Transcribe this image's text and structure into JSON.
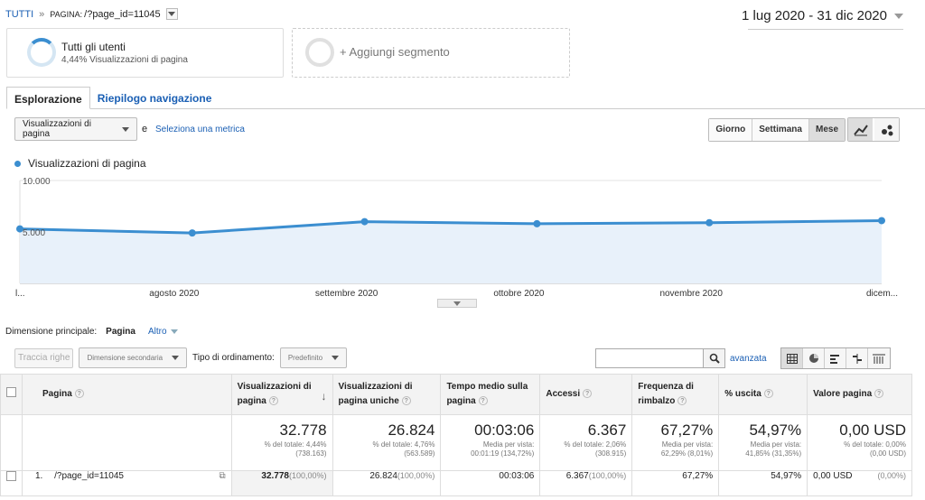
{
  "breadcrumb": {
    "root": "TUTTI",
    "separator": "»",
    "label": "PAGINA:",
    "value": "/?page_id=11045"
  },
  "date_range": "1 lug 2020 - 31 dic 2020",
  "segments": [
    {
      "title": "Tutti gli utenti",
      "subtitle": "4,44% Visualizzazioni di pagina"
    },
    {
      "title": "+ Aggiungi segmento"
    }
  ],
  "tabs": [
    "Esplorazione",
    "Riepilogo navigazione"
  ],
  "metric": {
    "selected": "Visualizzazioni di pagina",
    "conj": "e",
    "link": "Seleziona una metrica"
  },
  "granularity": [
    "Giorno",
    "Settimana",
    "Mese"
  ],
  "legend": "Visualizzazioni di pagina",
  "chart_data": {
    "type": "area",
    "series": [
      {
        "name": "Visualizzazioni di pagina",
        "values": [
          5300,
          4900,
          6000,
          5800,
          5900,
          6100
        ]
      }
    ],
    "x_labels": [
      "l...",
      "agosto 2020",
      "settembre 2020",
      "ottobre 2020",
      "novembre 2020",
      "dicem..."
    ],
    "y_ticks": [
      "10.000",
      "5.000"
    ],
    "ylim": [
      0,
      10000
    ],
    "color": "#3b8ed0"
  },
  "dimension": {
    "label": "Dimensione principale:",
    "value": "Pagina",
    "other": "Altro"
  },
  "toolbar": {
    "plot_rows": "Traccia righe",
    "secondary": "Dimensione secondaria",
    "sort_label": "Tipo di ordinamento:",
    "sort_value": "Predefinito",
    "advanced": "avanzata"
  },
  "table": {
    "headers": [
      "Pagina",
      "Visualizzazioni di pagina",
      "Visualizzazioni di pagina uniche",
      "Tempo medio sulla pagina",
      "Accessi",
      "Frequenza di rimbalzo",
      "% uscita",
      "Valore pagina"
    ],
    "totals": [
      {
        "big": "32.778",
        "l1": "% del totale: 4,44%",
        "l2": "(738.163)"
      },
      {
        "big": "26.824",
        "l1": "% del totale: 4,76%",
        "l2": "(563.589)"
      },
      {
        "big": "00:03:06",
        "l1": "Media per vista:",
        "l2": "00:01:19 (134,72%)"
      },
      {
        "big": "6.367",
        "l1": "% del totale: 2,06%",
        "l2": "(308.915)"
      },
      {
        "big": "67,27%",
        "l1": "Media per vista:",
        "l2": "62,29% (8,01%)"
      },
      {
        "big": "54,97%",
        "l1": "Media per vista:",
        "l2": "41,85% (31,35%)"
      },
      {
        "big": "0,00 USD",
        "l1": "% del totale: 0,00%",
        "l2": "(0,00 USD)"
      }
    ],
    "row": {
      "index": "1.",
      "page": "/?page_id=11045",
      "pageviews": "32.778",
      "pageviews_pct": "(100,00%)",
      "unique": "26.824",
      "unique_pct": "(100,00%)",
      "time": "00:03:06",
      "entrances": "6.367",
      "entrances_pct": "(100,00%)",
      "bounce": "67,27%",
      "exit": "54,97%",
      "value": "0,00 USD",
      "value_pct": "(0,00%)"
    }
  }
}
